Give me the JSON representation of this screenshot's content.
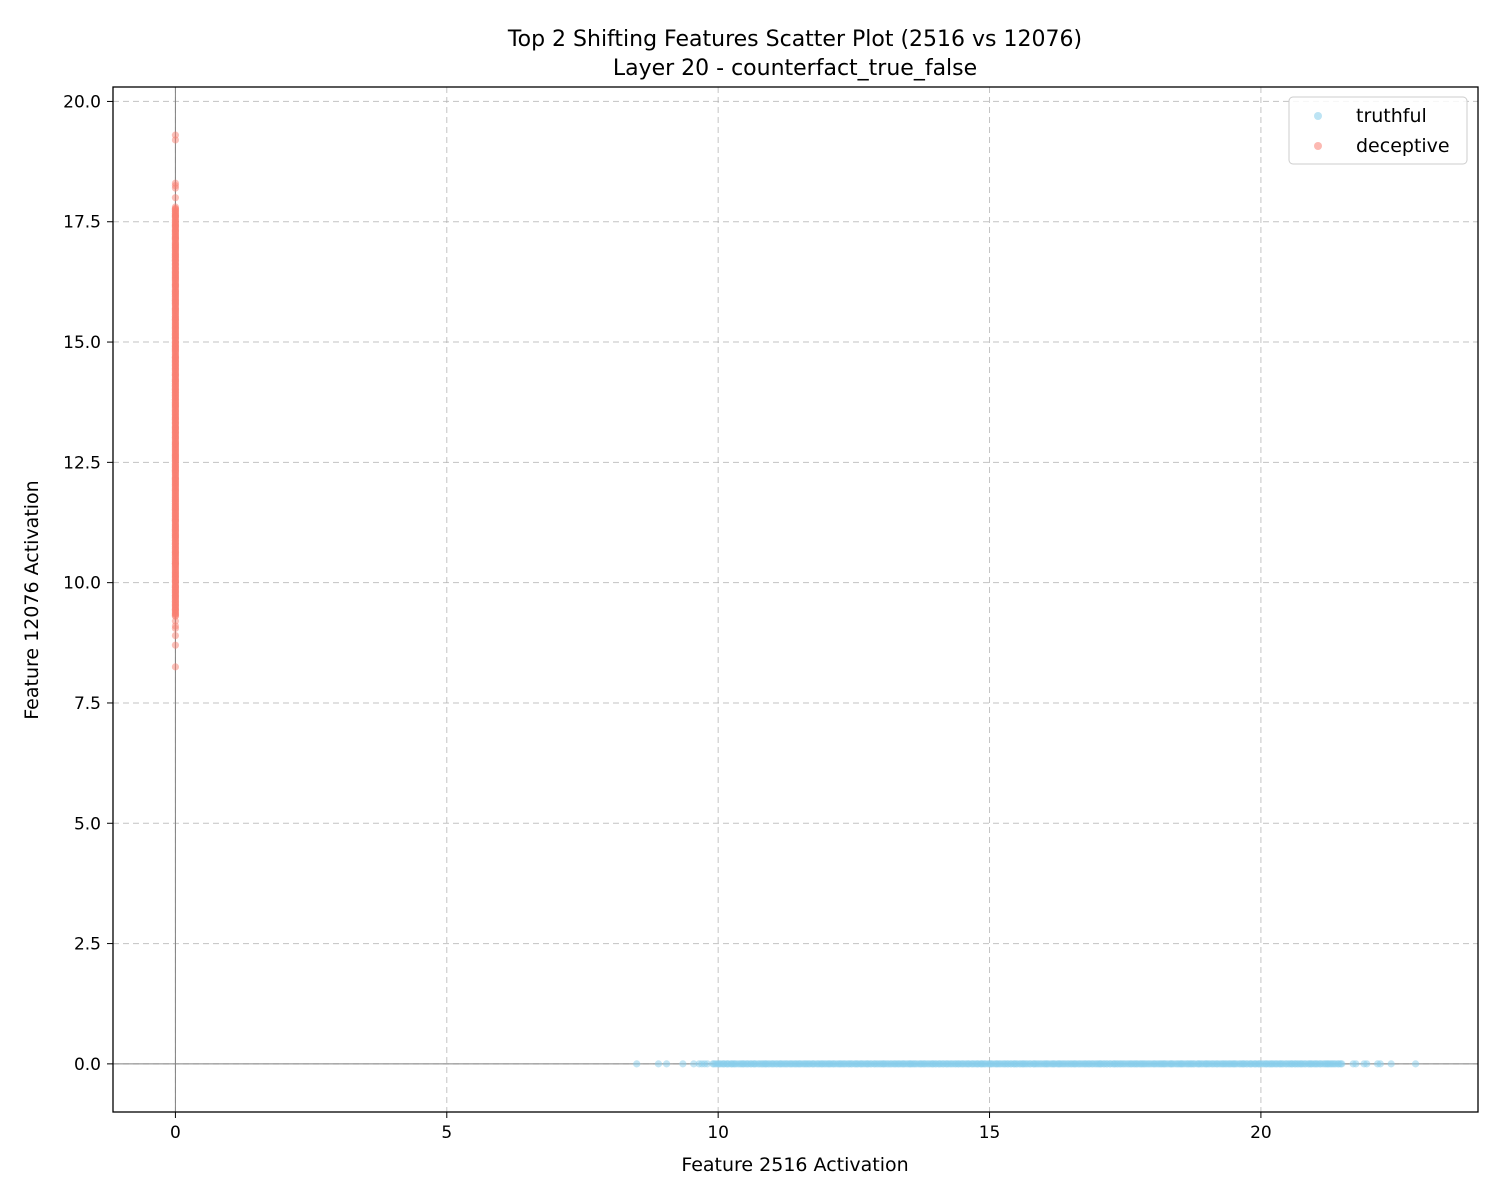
{
  "chart_data": {
    "type": "scatter",
    "title": "Top 2 Shifting Features Scatter Plot (2516 vs 12076)",
    "subtitle": "Layer 20 - counterfact_true_false",
    "xlabel": "Feature 2516 Activation",
    "ylabel": "Feature 12076 Activation",
    "xlim": [
      -1.15,
      24.0
    ],
    "ylim": [
      -1.0,
      20.3
    ],
    "xticks": [
      0,
      5,
      10,
      15,
      20
    ],
    "yticks": [
      0.0,
      2.5,
      5.0,
      7.5,
      10.0,
      12.5,
      15.0,
      17.5,
      20.0
    ],
    "grid": true,
    "reference_lines": {
      "x": 0,
      "y": 0
    },
    "legend": {
      "position": "top-right"
    },
    "series": [
      {
        "name": "truthful",
        "color": "#87ceeb",
        "distribution": {
          "fixed_axis": "y",
          "fixed_value": 0.0,
          "dense_range": [
            9.9,
            21.5
          ],
          "count": 420,
          "seed": 7
        },
        "points": [
          [
            8.5,
            0
          ],
          [
            8.9,
            0
          ],
          [
            9.05,
            0
          ],
          [
            9.35,
            0
          ],
          [
            9.55,
            0
          ],
          [
            9.65,
            0
          ],
          [
            9.7,
            0
          ],
          [
            9.75,
            0
          ],
          [
            9.8,
            0
          ],
          [
            21.7,
            0
          ],
          [
            21.75,
            0
          ],
          [
            21.9,
            0
          ],
          [
            21.95,
            0
          ],
          [
            22.15,
            0
          ],
          [
            22.2,
            0
          ],
          [
            22.4,
            0
          ],
          [
            22.85,
            0
          ]
        ]
      },
      {
        "name": "deceptive",
        "color": "#fa8072",
        "distribution": {
          "fixed_axis": "x",
          "fixed_value": 0.0,
          "dense_range": [
            9.3,
            17.8
          ],
          "count": 420,
          "seed": 11
        },
        "points": [
          [
            0,
            8.25
          ],
          [
            0,
            8.7
          ],
          [
            0,
            8.9
          ],
          [
            0,
            9.05
          ],
          [
            0,
            9.1
          ],
          [
            0,
            9.2
          ],
          [
            0,
            18.0
          ],
          [
            0,
            18.2
          ],
          [
            0,
            18.25
          ],
          [
            0,
            18.3
          ],
          [
            0,
            19.2
          ],
          [
            0,
            19.3
          ]
        ]
      }
    ]
  }
}
